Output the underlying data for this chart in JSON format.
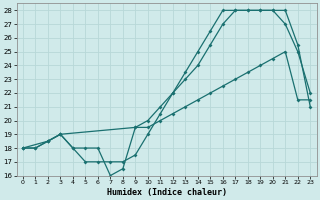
{
  "xlabel": "Humidex (Indice chaleur)",
  "xlim": [
    -0.5,
    23.5
  ],
  "ylim": [
    16,
    28.5
  ],
  "yticks": [
    16,
    17,
    18,
    19,
    20,
    21,
    22,
    23,
    24,
    25,
    26,
    27,
    28
  ],
  "xticks": [
    0,
    1,
    2,
    3,
    4,
    5,
    6,
    7,
    8,
    9,
    10,
    11,
    12,
    13,
    14,
    15,
    16,
    17,
    18,
    19,
    20,
    21,
    22,
    23
  ],
  "background_color": "#d0eaea",
  "grid_color": "#b8d8d8",
  "line_color": "#1a7070",
  "line1_x": [
    0,
    1,
    2,
    3,
    4,
    5,
    6,
    7,
    8,
    9,
    10,
    11,
    12,
    13,
    14,
    15,
    16,
    17,
    18,
    19,
    20,
    21,
    22,
    23
  ],
  "line1_y": [
    18,
    18,
    18.5,
    19,
    18,
    18,
    18,
    16,
    16.5,
    19.5,
    20,
    21,
    22,
    23.5,
    25,
    26.5,
    28,
    28,
    28,
    28,
    28,
    27,
    25,
    22
  ],
  "line2_x": [
    0,
    1,
    2,
    3,
    4,
    5,
    6,
    7,
    8,
    9,
    10,
    11,
    12,
    13,
    14,
    15,
    16,
    17,
    18,
    19,
    20,
    21,
    22,
    23
  ],
  "line2_y": [
    18,
    18,
    18.5,
    19,
    18,
    17,
    17,
    17,
    17,
    17.5,
    19,
    20.5,
    22,
    23,
    24,
    25.5,
    27,
    28,
    28,
    28,
    28,
    28,
    25.5,
    21
  ],
  "line3_x": [
    0,
    2,
    3,
    9,
    10,
    11,
    12,
    13,
    14,
    15,
    16,
    17,
    18,
    19,
    20,
    21,
    22,
    23
  ],
  "line3_y": [
    18,
    18.5,
    19,
    19.5,
    19.5,
    20,
    20.5,
    21,
    21.5,
    22,
    22.5,
    23,
    23.5,
    24,
    24.5,
    25,
    21.5,
    21.5
  ]
}
